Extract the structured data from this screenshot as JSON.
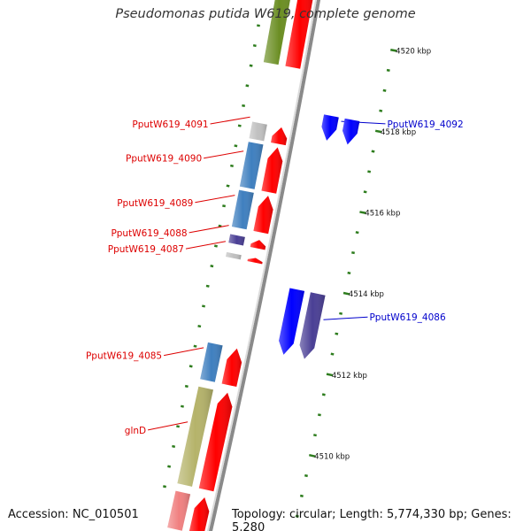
{
  "title": "Pseudomonas putida W619, complete genome",
  "footer": {
    "accession": "Accession: NC_010501",
    "topology": "Topology: circular; Length: 5,774,330 bp; Genes: 5,280"
  },
  "colors": {
    "backbone": "#8a8a8a",
    "forward_label": "#dd0000",
    "reverse_label": "#0000cc",
    "tick": "#2e7d1e",
    "cds": "#ff0000",
    "lightblue": "#3f7fbf",
    "darkblue": "#0000ff",
    "navy": "#4a3f95",
    "olive": "#6b8e23",
    "khaki": "#b5b36a",
    "grey": "#c0c0c0",
    "pink": "#f08080"
  },
  "scale_labels": [
    {
      "kbp": 4520,
      "text": "4520 kbp"
    },
    {
      "kbp": 4518,
      "text": "4518 kbp"
    },
    {
      "kbp": 4516,
      "text": "4516 kbp"
    },
    {
      "kbp": 4514,
      "text": "4514 kbp"
    },
    {
      "kbp": 4512,
      "text": "4512 kbp"
    },
    {
      "kbp": 4510,
      "text": "4510 kbp"
    }
  ],
  "features": [
    {
      "name": "",
      "strand": "+",
      "color": "olive",
      "start_kbp": 4519.1,
      "end_kbp": 4521.5
    },
    {
      "name": "",
      "strand": "+",
      "color": "cds",
      "start_kbp": 4519.1,
      "end_kbp": 4521.5
    },
    {
      "name": "PputW619_4092",
      "strand": "-",
      "color": "darkblue",
      "start_kbp": 4517.5,
      "end_kbp": 4518.2
    },
    {
      "name": "",
      "strand": "-",
      "color": "darkblue",
      "start_kbp": 4517.5,
      "end_kbp": 4518.2
    },
    {
      "name": "PputW619_4091",
      "strand": "+",
      "color": "grey",
      "start_kbp": 4517.2,
      "end_kbp": 4517.7
    },
    {
      "name": "",
      "strand": "+",
      "color": "cds",
      "start_kbp": 4517.2,
      "end_kbp": 4517.7
    },
    {
      "name": "PputW619_4090",
      "strand": "+",
      "color": "lightblue",
      "start_kbp": 4516.0,
      "end_kbp": 4517.2
    },
    {
      "name": "",
      "strand": "+",
      "color": "cds",
      "start_kbp": 4516.0,
      "end_kbp": 4517.2
    },
    {
      "name": "PputW619_4089",
      "strand": "+",
      "color": "lightblue",
      "start_kbp": 4515.0,
      "end_kbp": 4516.0
    },
    {
      "name": "",
      "strand": "+",
      "color": "cds",
      "start_kbp": 4515.0,
      "end_kbp": 4516.0
    },
    {
      "name": "PputW619_4088",
      "strand": "+",
      "color": "navy",
      "start_kbp": 4514.6,
      "end_kbp": 4514.9
    },
    {
      "name": "",
      "strand": "+",
      "color": "cds",
      "start_kbp": 4514.6,
      "end_kbp": 4514.9
    },
    {
      "name": "PputW619_4087",
      "strand": "+",
      "color": "grey",
      "start_kbp": 4514.25,
      "end_kbp": 4514.45
    },
    {
      "name": "",
      "strand": "+",
      "color": "cds",
      "start_kbp": 4514.25,
      "end_kbp": 4514.45
    },
    {
      "name": "",
      "strand": "-",
      "color": "darkblue",
      "start_kbp": 4512.2,
      "end_kbp": 4513.9
    },
    {
      "name": "PputW619_4086",
      "strand": "-",
      "color": "navy",
      "start_kbp": 4512.2,
      "end_kbp": 4513.9
    },
    {
      "name": "PputW619_4085",
      "strand": "+",
      "color": "lightblue",
      "start_kbp": 4511.2,
      "end_kbp": 4512.2
    },
    {
      "name": "",
      "strand": "+",
      "color": "cds",
      "start_kbp": 4511.2,
      "end_kbp": 4512.2
    },
    {
      "name": "glnD",
      "strand": "+",
      "color": "khaki",
      "start_kbp": 4508.6,
      "end_kbp": 4511.1
    },
    {
      "name": "",
      "strand": "+",
      "color": "cds",
      "start_kbp": 4508.6,
      "end_kbp": 4511.1
    },
    {
      "name": "",
      "strand": "+",
      "color": "pink",
      "start_kbp": 4507.5,
      "end_kbp": 4508.5
    },
    {
      "name": "",
      "strand": "+",
      "color": "cds",
      "start_kbp": 4507.5,
      "end_kbp": 4508.5
    }
  ]
}
